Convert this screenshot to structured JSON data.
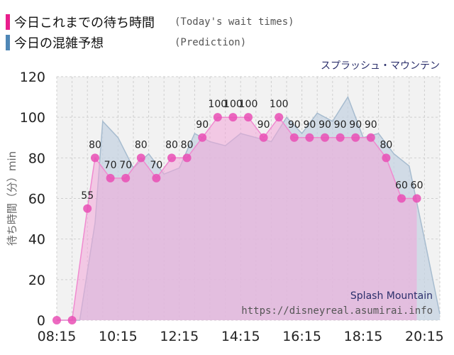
{
  "legend": {
    "actual": {
      "label": "今日これまでの待ち時間",
      "sub": "(Today's wait times)",
      "color": "#e91e8c"
    },
    "prediction": {
      "label": "今日の混雑予想",
      "sub": "(Prediction)",
      "color": "#4f87b6"
    }
  },
  "attraction_name_jp": "スプラッシュ・マウンテン",
  "colors": {
    "actual_fill": "#f3a6d8",
    "actual_line": "#f08ad0",
    "actual_marker": "#e94fb5",
    "prediction_fill": "#c5d3e2",
    "prediction_line": "#a7bccf",
    "plot_background": "#f2f2f2",
    "grid": "#cfcfcf",
    "axis_label": "#666666",
    "watermark_title": "#2b2f6b",
    "watermark_url": "#555555"
  },
  "chart_data": {
    "type": "area",
    "ylabel": "待ち時間（分）min",
    "ylim": [
      0,
      120
    ],
    "yticks": [
      0,
      20,
      40,
      60,
      80,
      100,
      120
    ],
    "xlim": [
      "08:15",
      "20:45"
    ],
    "xticks": [
      "08:15",
      "10:15",
      "12:15",
      "14:15",
      "16:15",
      "18:15",
      "20:15"
    ],
    "grid": true,
    "watermark": {
      "title": "Splash Mountain",
      "url": "https://disneyreal.asumirai.info"
    },
    "series": [
      {
        "type": "line-markers",
        "x": [
          "08:15",
          "08:45",
          "09:15",
          "09:30",
          "10:00",
          "10:30",
          "11:00",
          "11:30",
          "12:00",
          "12:30",
          "13:00",
          "13:30",
          "14:00",
          "14:30",
          "15:00",
          "15:30",
          "16:00",
          "16:30",
          "17:00",
          "17:30",
          "18:00",
          "18:30",
          "19:00",
          "19:30",
          "20:00",
          "20:30"
        ],
        "values": [
          0,
          0,
          55,
          80,
          70,
          70,
          80,
          70,
          80,
          80,
          90,
          100,
          100,
          100,
          90,
          100,
          90,
          90,
          90,
          90,
          90,
          90,
          80,
          60,
          60,
          null
        ],
        "data_labels": [
          "",
          "",
          "55",
          "80",
          "70",
          "70",
          "80",
          "70",
          "80",
          "80",
          "90",
          "100",
          "100",
          "100",
          "90",
          "100",
          "90",
          "90",
          "90",
          "90",
          "90",
          "90",
          "80",
          "60",
          "60",
          ""
        ]
      },
      {
        "type": "area",
        "x": [
          "08:15",
          "09:00",
          "09:30",
          "09:45",
          "10:15",
          "10:45",
          "11:15",
          "11:45",
          "12:15",
          "12:45",
          "13:15",
          "13:45",
          "14:15",
          "14:45",
          "15:15",
          "15:45",
          "16:15",
          "16:45",
          "17:15",
          "17:45",
          "18:15",
          "18:45",
          "19:15",
          "19:45",
          "20:15",
          "20:45"
        ],
        "values": [
          0,
          0,
          48,
          98,
          90,
          75,
          82,
          72,
          75,
          92,
          88,
          86,
          92,
          90,
          88,
          100,
          92,
          102,
          98,
          110,
          90,
          92,
          82,
          76,
          40,
          3
        ]
      }
    ]
  }
}
